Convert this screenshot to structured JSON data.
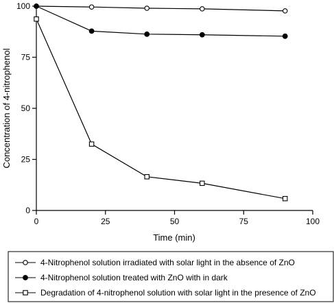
{
  "chart_data": {
    "type": "line",
    "xlabel": "Time (min)",
    "ylabel": "Concentration of 4-nitrophenol",
    "xlim": [
      0,
      100
    ],
    "ylim": [
      0,
      100
    ],
    "xticks": [
      "0",
      "25",
      "50",
      "75",
      "100"
    ],
    "yticks": [
      "0",
      "25",
      "50",
      "75",
      "100"
    ],
    "grid": false,
    "legend_position": "bottom",
    "series": [
      {
        "name": "4-Nitrophenol solution irradiated with solar light in the absence of ZnO",
        "marker": "open-circle",
        "x": [
          0,
          20,
          40,
          60,
          90
        ],
        "y": [
          100,
          99.6,
          99,
          98.7,
          97.7
        ]
      },
      {
        "name": "4-Nitrophenol solution treated with ZnO with in dark",
        "marker": "filled-circle",
        "x": [
          0,
          20,
          40,
          60,
          90
        ],
        "y": [
          100,
          87.8,
          86.3,
          86,
          85.3
        ]
      },
      {
        "name": "Degradation of 4-nitrophenol solution with solar light in the presence of ZnO",
        "marker": "open-square",
        "x": [
          0,
          20,
          40,
          60,
          90
        ],
        "y": [
          93.7,
          32.5,
          16.5,
          13.3,
          5.8
        ]
      }
    ]
  }
}
